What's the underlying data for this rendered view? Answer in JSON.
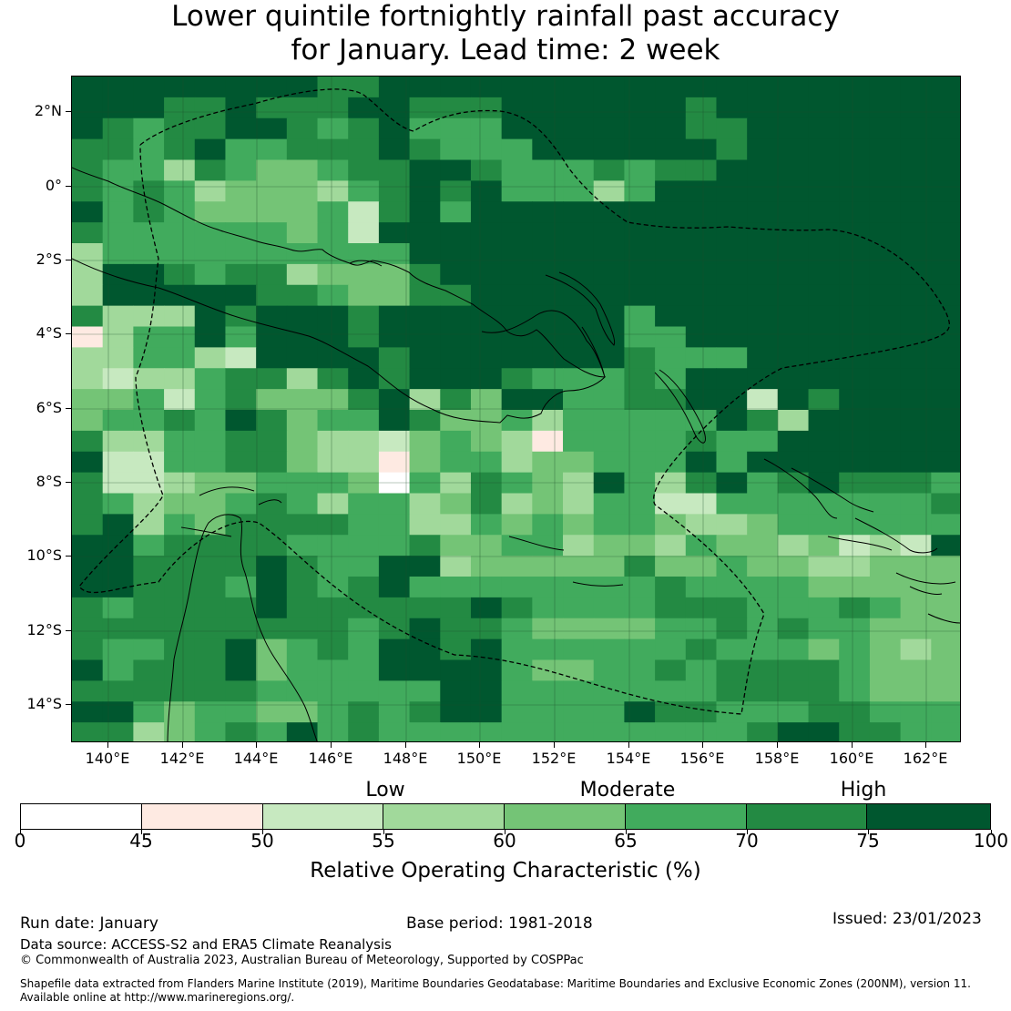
{
  "title": {
    "line1": "Lower quintile fortnightly rainfall past accuracy",
    "line2": "for January. Lead time: 2 week"
  },
  "map": {
    "lat_labels": [
      "2°N",
      "0°",
      "2°S",
      "4°S",
      "6°S",
      "8°S",
      "10°S",
      "12°S",
      "14°S"
    ],
    "lon_labels": [
      "140°E",
      "142°E",
      "144°E",
      "146°E",
      "148°E",
      "150°E",
      "152°E",
      "154°E",
      "156°E",
      "158°E",
      "160°E",
      "162°E"
    ],
    "description_colors": {
      "dark_green": "#00572f",
      "green": "#238a43",
      "mid_green": "#41ab5d",
      "light_green": "#74c476",
      "pale_green": "#a1d99b",
      "very_pale_green": "#c7e9c0",
      "salmon": "#feeae2",
      "white": "#ffffff"
    }
  },
  "legend": {
    "categories": [
      "Low",
      "Moderate",
      "High"
    ],
    "tick_labels": [
      "0",
      "45",
      "50",
      "55",
      "60",
      "65",
      "70",
      "75",
      "100"
    ],
    "colors": [
      "#ffffff",
      "#feeae2",
      "#c7e9c0",
      "#a1d99b",
      "#74c476",
      "#41ab5d",
      "#238a43",
      "#00572f"
    ],
    "axis_label": "Relative Operating Characteristic (%)"
  },
  "footer": {
    "run_date": "Run date: January",
    "base_period": "Base period: 1981-2018",
    "issued": "Issued: 23/01/2023",
    "data_source": "Data source: ACCESS-S2 and ERA5 Climate Reanalysis",
    "copyright": "© Commonwealth of Australia 2023, Australian Bureau of Meteorology, Supported by COSPPac",
    "shapefile_1": "Shapefile data extracted from Flanders Marine Institute (2019), Maritime Boundaries Geodatabase: Maritime Boundaries and Exclusive Economic Zones (200NM), version 11.",
    "shapefile_2": "Available online at http://www.marineregions.org/."
  }
}
